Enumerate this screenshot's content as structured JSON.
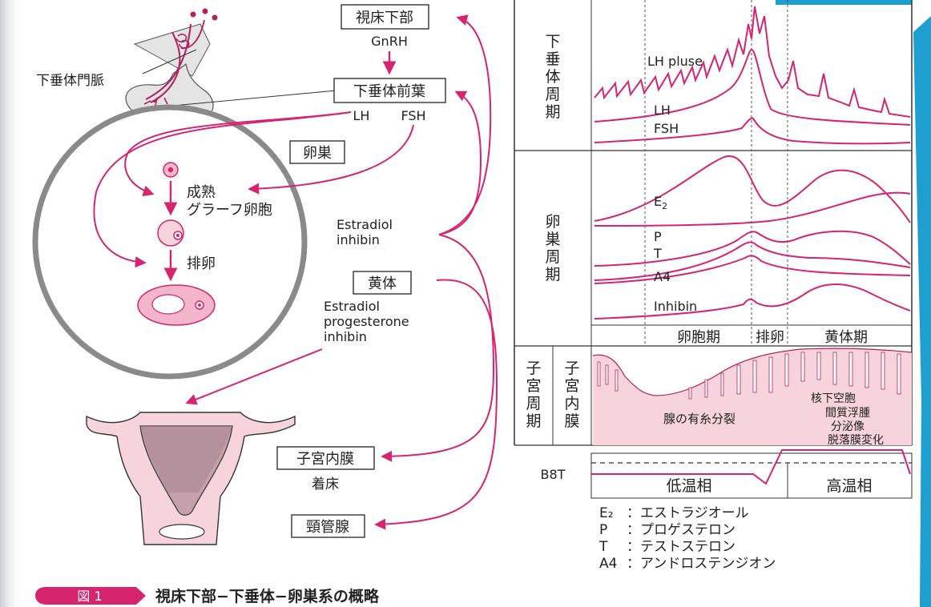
{
  "accent_color": "#d6246e",
  "edge_color": "#1f9fd0",
  "labels": {
    "portal_vein": "下垂体門脈",
    "hypothalamus": "視床下部",
    "gnrh": "GnRH",
    "anterior_pituitary": "下垂体前葉",
    "lh": "LH",
    "fsh": "FSH",
    "ovary": "卵巣",
    "mature_follicle_1": "成熟",
    "mature_follicle_2": "グラーフ卵胞",
    "ovulation": "排卵",
    "estradiol_inhibin_1": "Estradiol",
    "estradiol_inhibin_2": "inhibin",
    "corpus_luteum": "黄体",
    "cl_hormones_1": "Estradiol",
    "cl_hormones_2": "progesterone",
    "cl_hormones_3": "inhibin",
    "endometrium": "子宮内膜",
    "implantation": "着床",
    "cervical_gland": "頸管腺"
  },
  "panel": {
    "pituitary_cycle": [
      "下",
      "垂",
      "体",
      "周",
      "期"
    ],
    "ovarian_cycle": [
      "卵",
      "巣",
      "周",
      "期"
    ],
    "uterine_cycle": [
      "子",
      "宮",
      "周",
      "期"
    ],
    "endometrium_col": [
      "子",
      "宮",
      "内",
      "膜"
    ],
    "curves": {
      "lh_pulse": "LH pluse",
      "lh": "LH",
      "fsh": "FSH",
      "e2": "E",
      "e2_sub": "2",
      "p": "P",
      "t": "T",
      "a4": "A4",
      "inhibin": "Inhibin"
    },
    "phases": {
      "follicular": "卵胞期",
      "ovulation": "排卵",
      "luteal": "黄体期"
    },
    "endometrium_notes": {
      "mitosis": "腺の有糸分裂",
      "subnuclear": "核下空胞",
      "edema": "間質浮腫",
      "secretion": "分泌像",
      "decidual": "脱落膜変化"
    },
    "bbt": {
      "label": "B8T",
      "low": "低温相",
      "high": "高温相"
    }
  },
  "legend": [
    {
      "key": "E₂",
      "value": "：エストラジオール"
    },
    {
      "key": "P",
      "value": "：プロゲステロン"
    },
    {
      "key": "T",
      "value": "：テストステロン"
    },
    {
      "key": "A4",
      "value": "：アンドロステンジオン"
    }
  ],
  "caption": {
    "badge": "図 1",
    "title": "視床下部−下垂体−卵巣系の概略"
  }
}
